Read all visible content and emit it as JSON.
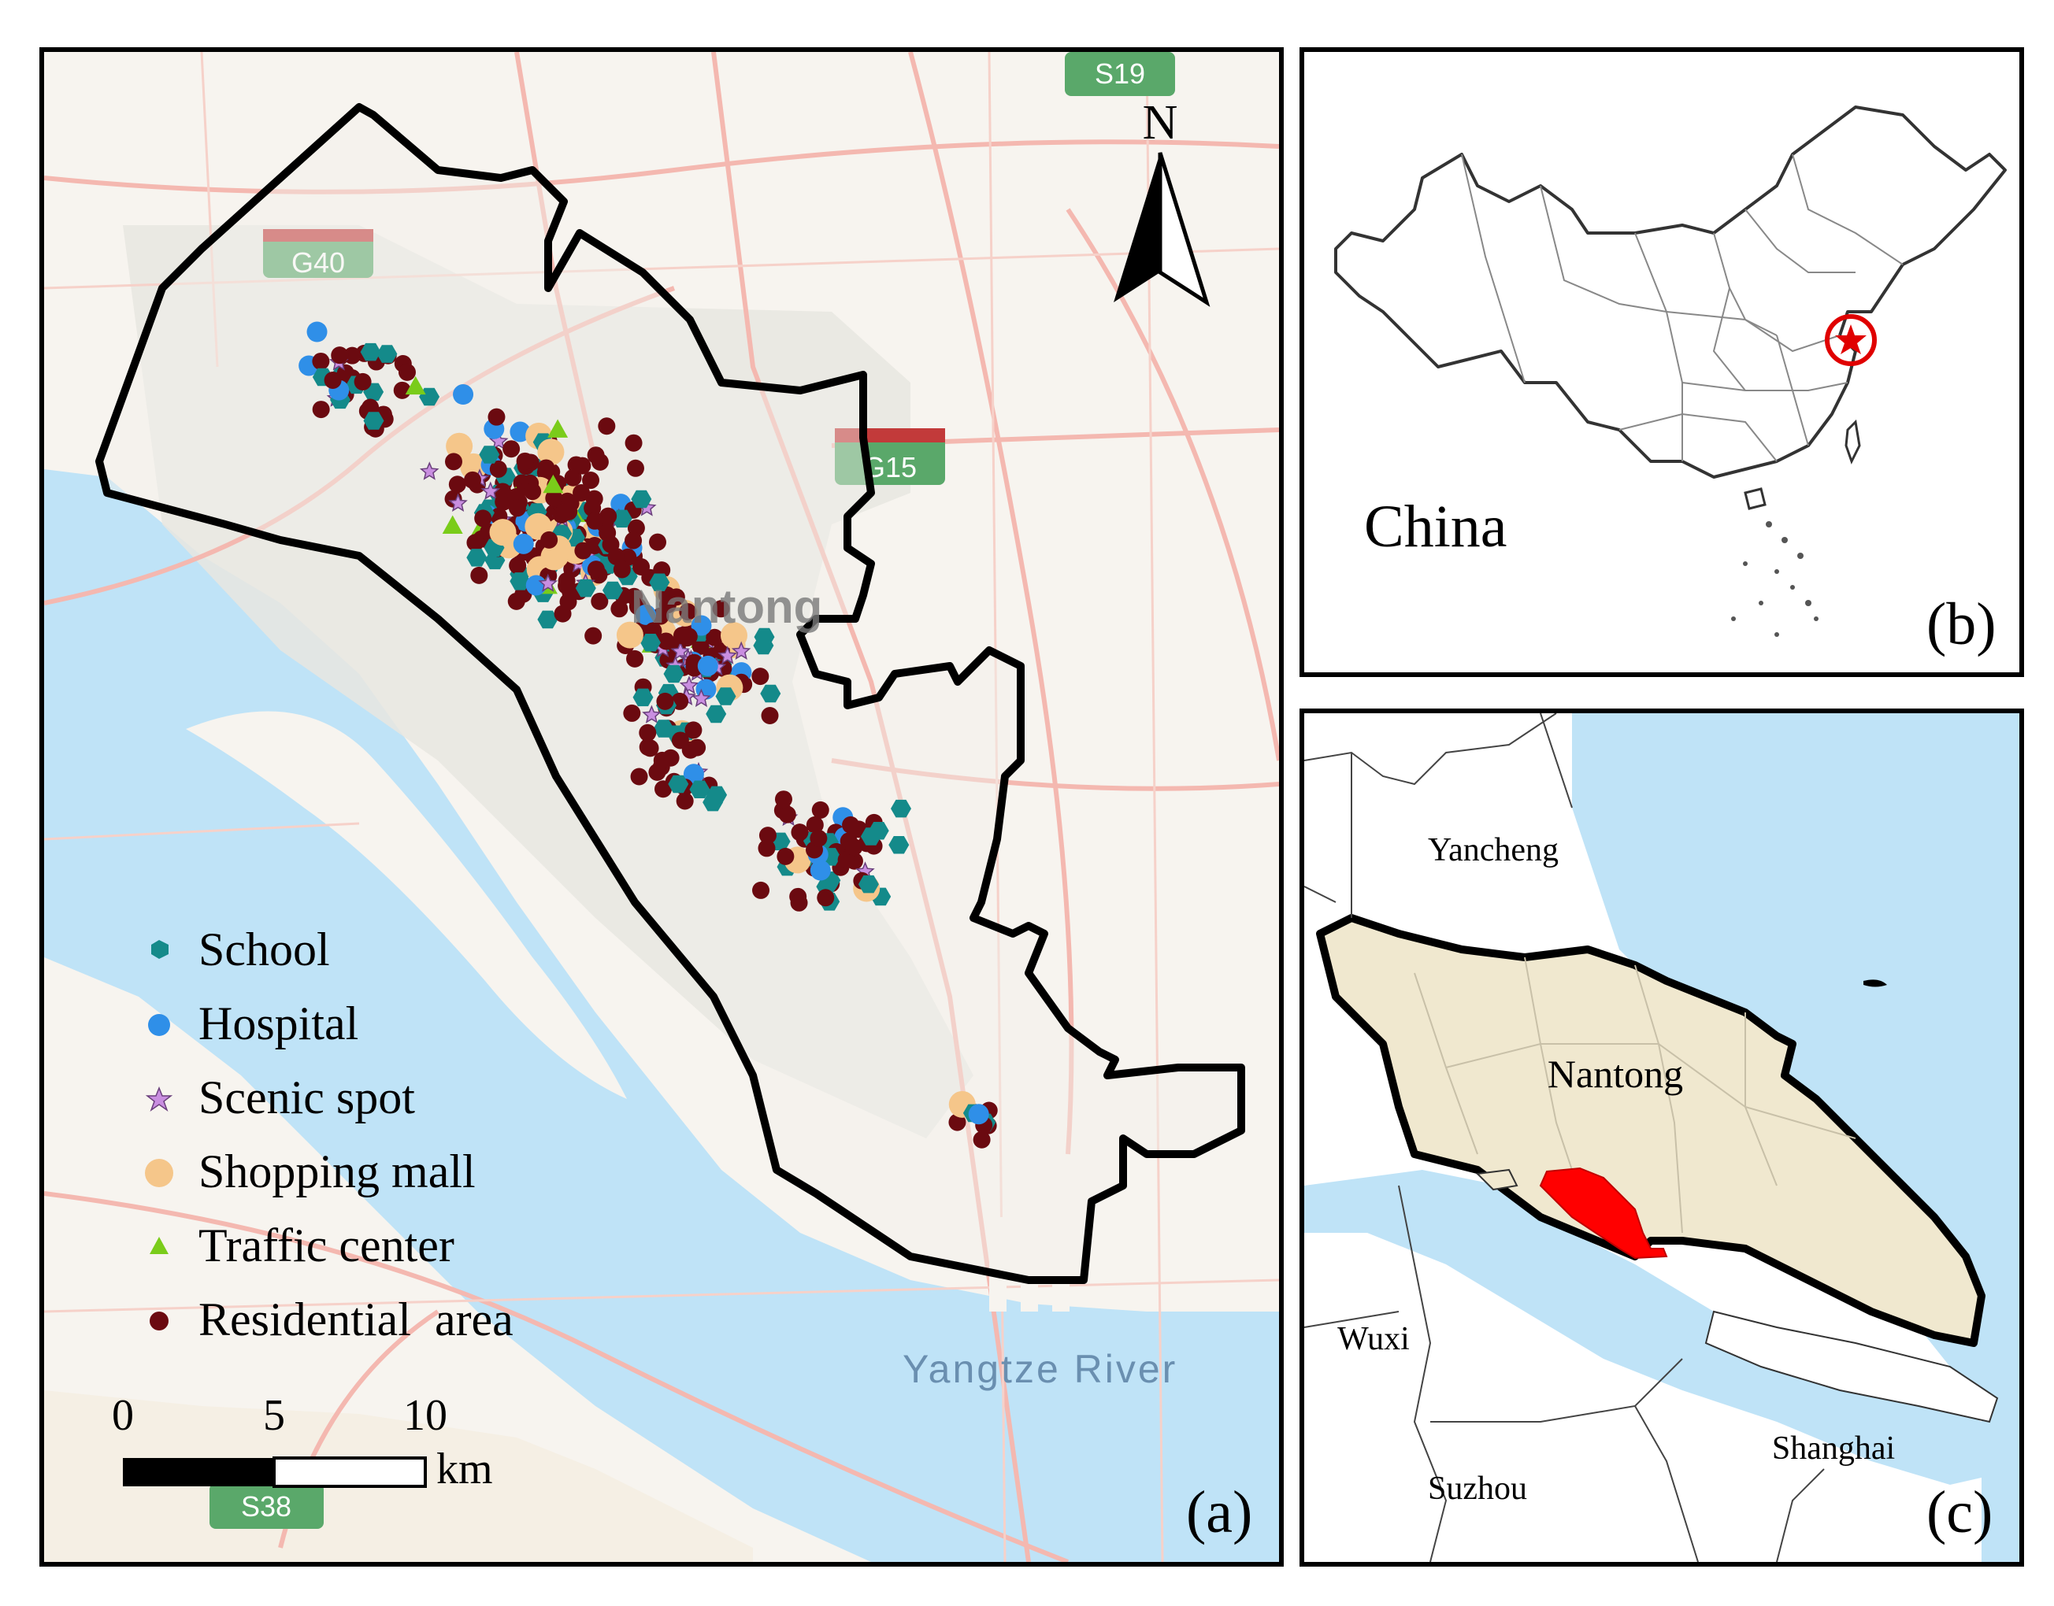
{
  "panels": {
    "a": {
      "label": "(a)",
      "city_label": "Nantong",
      "river_label": "Yangtze River",
      "north": "N",
      "road_shields": [
        "S19",
        "G40",
        "G15",
        "S38"
      ],
      "legend": [
        {
          "label": "School",
          "color": "#148a8a",
          "shape": "hexagon"
        },
        {
          "label": "Hospital",
          "color": "#2f8fe8",
          "shape": "circle"
        },
        {
          "label": "Scenic spot",
          "color": "#c98ee0",
          "shape": "star"
        },
        {
          "label": "Shopping mall",
          "color": "#f5c68a",
          "shape": "circle"
        },
        {
          "label": "Traffic center",
          "color": "#7acc1a",
          "shape": "triangle"
        },
        {
          "label": "Residential  area",
          "color": "#6b0a10",
          "shape": "circle"
        }
      ],
      "scale_bar": {
        "ticks": [
          "0",
          "5",
          "10"
        ],
        "unit": "km"
      }
    },
    "b": {
      "label": "(b)",
      "country_label": "China"
    },
    "c": {
      "label": "(c)",
      "region_labels": [
        "Yancheng",
        "Nantong",
        "Wuxi",
        "Suzhou",
        "Shanghai"
      ]
    }
  },
  "colors": {
    "water": "#bfe3f7",
    "urban": "#eeece6",
    "study_area": "#ff0000",
    "nantong_fill": "#f0e8cf",
    "road": "#f4b8b0",
    "shield": "#5aa86a"
  }
}
